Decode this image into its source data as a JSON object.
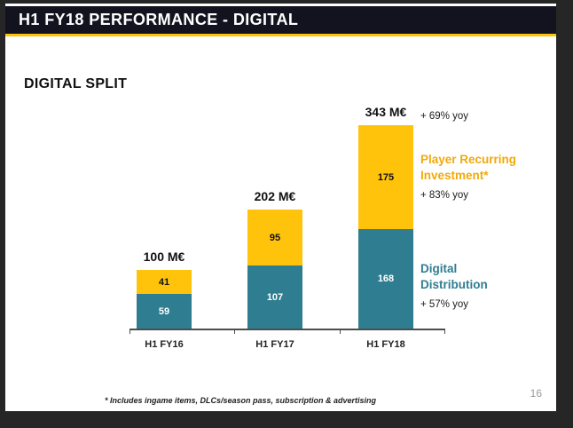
{
  "slide": {
    "header_title": "H1 FY18 PERFORMANCE - DIGITAL",
    "section_title": "DIGITAL SPLIT",
    "footnote": "* Includes ingame items, DLCs/season pass, subscription & advertising",
    "page_number": "16"
  },
  "colors": {
    "header_bg": "#131320",
    "accent_gold": "#FFC30B",
    "legend_gold_text": "#F2A90A",
    "legend_teal_text": "#2F7D90"
  },
  "chart_data": {
    "type": "bar",
    "stacked": true,
    "unit": "M€",
    "grid": false,
    "ylim": [
      0,
      343
    ],
    "categories": [
      "H1 FY16",
      "H1 FY17",
      "H1 FY18"
    ],
    "series": [
      {
        "name": "Digital Distribution",
        "values": [
          59,
          107,
          168
        ],
        "color": "#2F7D90",
        "value_label_color": "#FFFFFF"
      },
      {
        "name": "Player Recurring Investment*",
        "values": [
          41,
          95,
          175
        ],
        "color": "#FFC30B",
        "value_label_color": "#111111"
      }
    ],
    "totals": [
      "100 M€",
      "202 M€",
      "343 M€"
    ],
    "annotations": {
      "total_growth_yoy": "+ 69% yoy",
      "player_recurring_investment_yoy": "+ 83% yoy",
      "digital_distribution_yoy": "+ 57% yoy"
    }
  }
}
